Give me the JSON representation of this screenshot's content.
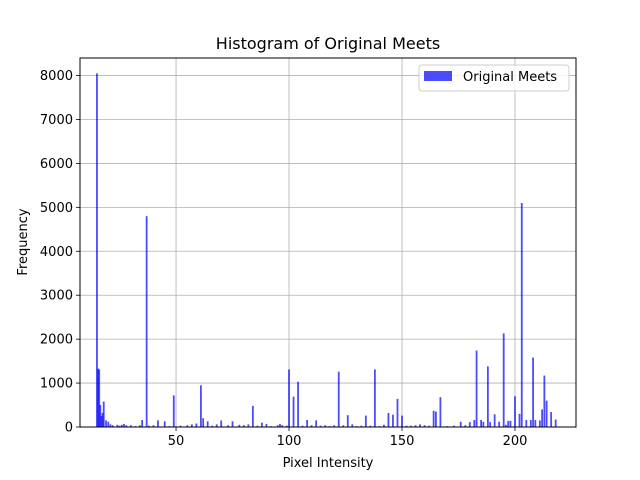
{
  "chart_data": {
    "type": "bar",
    "title": "Histogram of Original Meets",
    "xlabel": "Pixel Intensity",
    "ylabel": "Frequency",
    "xlim": [
      7.5,
      227
    ],
    "ylim": [
      0,
      8400
    ],
    "xticks": [
      50,
      100,
      150,
      200
    ],
    "yticks": [
      0,
      1000,
      2000,
      3000,
      4000,
      5000,
      6000,
      7000,
      8000
    ],
    "grid": true,
    "legend_position": "top-right",
    "series": [
      {
        "name": "Original Meets",
        "color": "#0000ff",
        "alpha": 0.7,
        "bar_width": 0.8,
        "x": [
          15,
          15.5,
          16,
          16.5,
          17,
          17.5,
          18,
          19,
          20,
          21,
          22,
          24,
          25,
          26,
          27,
          28,
          30,
          32,
          34,
          35,
          37,
          38,
          40,
          42,
          45,
          47,
          49,
          52,
          55,
          57,
          59,
          61,
          62,
          64,
          66,
          68,
          70,
          73,
          75,
          78,
          80,
          82,
          84,
          86,
          88,
          90,
          92,
          95,
          96,
          97,
          99,
          100,
          102,
          104,
          106,
          108,
          110,
          112,
          114,
          116,
          118,
          120,
          122,
          124,
          126,
          128,
          130,
          132,
          134,
          136,
          138,
          140,
          142,
          144,
          146,
          148,
          150,
          152,
          154,
          156,
          158,
          160,
          162,
          164,
          165,
          167,
          170,
          173,
          176,
          178,
          180,
          182,
          183,
          185,
          186,
          188,
          189,
          191,
          193,
          195,
          196,
          197,
          198,
          200,
          202,
          203,
          205,
          207,
          208,
          209,
          211,
          212,
          213,
          214,
          216,
          218
        ],
        "values": [
          8050,
          1330,
          1310,
          500,
          250,
          320,
          580,
          150,
          120,
          60,
          40,
          50,
          30,
          50,
          70,
          40,
          40,
          20,
          40,
          160,
          4800,
          30,
          40,
          150,
          130,
          20,
          720,
          30,
          40,
          60,
          80,
          950,
          200,
          130,
          30,
          60,
          150,
          40,
          130,
          50,
          40,
          60,
          480,
          30,
          100,
          70,
          20,
          40,
          70,
          40,
          30,
          1310,
          690,
          1030,
          30,
          160,
          40,
          150,
          30,
          40,
          20,
          40,
          1260,
          40,
          270,
          60,
          20,
          30,
          260,
          30,
          1310,
          20,
          50,
          320,
          280,
          640,
          260,
          30,
          30,
          40,
          60,
          40,
          30,
          370,
          350,
          680,
          20,
          30,
          120,
          40,
          110,
          160,
          1740,
          160,
          120,
          1380,
          110,
          290,
          120,
          2130,
          50,
          140,
          140,
          700,
          300,
          5100,
          160,
          160,
          1580,
          160,
          150,
          400,
          1170,
          600,
          340,
          170
        ]
      }
    ]
  }
}
